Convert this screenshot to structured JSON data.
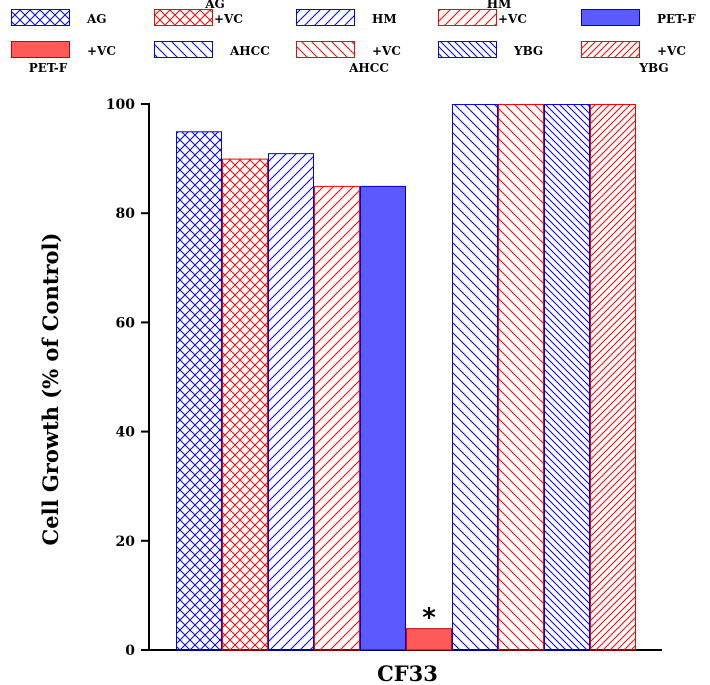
{
  "chart_data": {
    "type": "bar",
    "categories": [
      "CF33"
    ],
    "xlabel": "CF33",
    "ylabel": "Cell Growth (% of Control)",
    "ylim": [
      0,
      100
    ],
    "yticks": [
      0,
      20,
      40,
      60,
      80,
      100
    ],
    "grid": false,
    "legend_position": "top",
    "series": [
      {
        "name": "AG",
        "label_lines": [
          "AG"
        ],
        "values": [
          95
        ],
        "color": "#0000ff",
        "pattern": "crosshatch"
      },
      {
        "name": "AG +VC",
        "label_lines": [
          "AG",
          "+VC"
        ],
        "values": [
          90
        ],
        "color": "#ff0000",
        "pattern": "crosshatch"
      },
      {
        "name": "HM",
        "label_lines": [
          "HM"
        ],
        "values": [
          91
        ],
        "color": "#0000ff",
        "pattern": "diag-up"
      },
      {
        "name": "HM +VC",
        "label_lines": [
          "HM",
          "+VC"
        ],
        "values": [
          85
        ],
        "color": "#ff0000",
        "pattern": "diag-up"
      },
      {
        "name": "PET-F",
        "label_lines": [
          "PET-F"
        ],
        "values": [
          85
        ],
        "color": "#5a5aff",
        "pattern": "solid"
      },
      {
        "name": "PET-F +VC",
        "label_lines": [
          "+VC",
          "PET-F"
        ],
        "values": [
          4
        ],
        "color": "#ff5a5a",
        "pattern": "solid",
        "annotation": "*"
      },
      {
        "name": "AHCC",
        "label_lines": [
          "AHCC"
        ],
        "values": [
          100
        ],
        "color": "#0000ff",
        "pattern": "diag-down"
      },
      {
        "name": "AHCC +VC",
        "label_lines": [
          "+VC",
          "AHCC"
        ],
        "values": [
          100
        ],
        "color": "#ff0000",
        "pattern": "diag-down"
      },
      {
        "name": "YBG",
        "label_lines": [
          "YBG"
        ],
        "values": [
          100
        ],
        "color": "#0000ff",
        "pattern": "diag-down-dense"
      },
      {
        "name": "YBG +VC",
        "label_lines": [
          "+VC",
          "YBG"
        ],
        "values": [
          100
        ],
        "color": "#ff0000",
        "pattern": "diag-up-dense"
      }
    ]
  }
}
